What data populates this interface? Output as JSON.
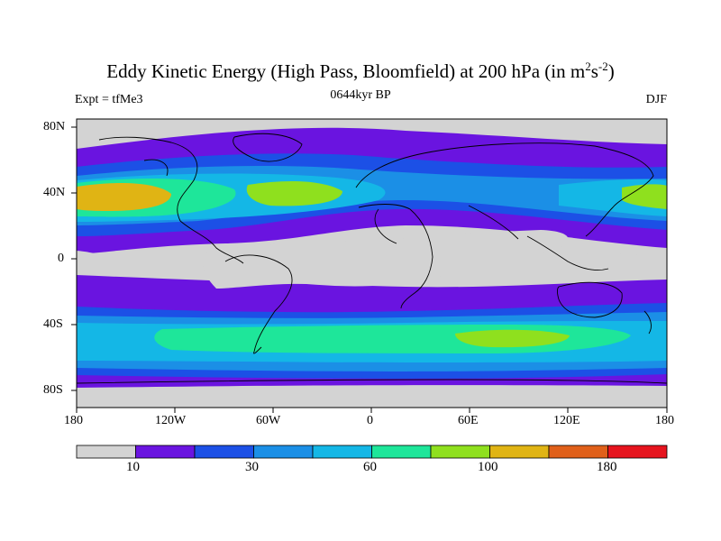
{
  "title": {
    "main": "Eddy Kinetic Energy (High Pass, Bloomfield) at 200 hPa (in m",
    "sup1": "2",
    "mid": "s",
    "sup2": "-2",
    "end": ")"
  },
  "subtitle": {
    "left": "Expt = tfMe3",
    "center": "0644kyr BP",
    "right": "DJF"
  },
  "lat_ticks": [
    "80N",
    "40N",
    "0",
    "40S",
    "80S"
  ],
  "lon_ticks": [
    "180",
    "120W",
    "60W",
    "0",
    "60E",
    "120E",
    "180"
  ],
  "colorbar": {
    "colors": [
      "#d3d3d3",
      "#6a14e0",
      "#1c50e6",
      "#1b8fe6",
      "#14b7e6",
      "#1ee69a",
      "#8fe01e",
      "#e0b414",
      "#e0601a",
      "#e6141e"
    ],
    "labels": [
      "10",
      "30",
      "60",
      "100",
      "180"
    ]
  },
  "colors": {
    "land_outline": "#000000",
    "frame": "#000000"
  }
}
